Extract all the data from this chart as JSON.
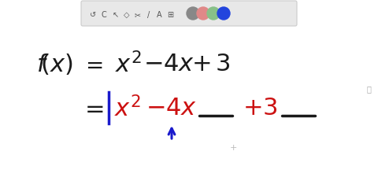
{
  "background_color": "#ffffff",
  "black_color": "#1a1a1a",
  "red_color": "#cc1111",
  "blue_color": "#1a1acc",
  "gray_color": "#aaaaaa",
  "toolbar_bg": "#e8e8e8",
  "toolbar_border": "#cccccc",
  "figw": 4.8,
  "figh": 2.26,
  "dpi": 100
}
